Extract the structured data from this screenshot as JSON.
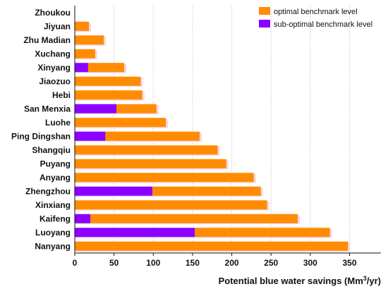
{
  "chart_data": {
    "type": "bar",
    "orientation": "horizontal",
    "stacked": true,
    "categories": [
      "Zhoukou",
      "Jiyuan",
      "Zhu Madian",
      "Xuchang",
      "Xinyang",
      "Jiaozuo",
      "Hebi",
      "San Menxia",
      "Luohe",
      "Ping Dingshan",
      "Shangqiu",
      "Puyang",
      "Anyang",
      "Zhengzhou",
      "Xinxiang",
      "Kaifeng",
      "Luoyang",
      "Nanyang"
    ],
    "series": [
      {
        "name": "sub-optimal benchmark level",
        "color": "#8b00ff",
        "values": [
          0,
          0,
          0,
          0,
          17,
          0,
          0,
          53,
          0,
          39,
          0,
          0,
          0,
          99,
          0,
          20,
          153,
          0
        ]
      },
      {
        "name": "optimal benchmark level",
        "color": "#ff8c00",
        "values": [
          0,
          18,
          37,
          26,
          46,
          84,
          86,
          51,
          116,
          120,
          182,
          193,
          228,
          138,
          245,
          264,
          172,
          348
        ]
      }
    ],
    "xlim": [
      0,
      390
    ],
    "xticks": [
      0,
      50,
      100,
      150,
      200,
      250,
      300,
      350
    ],
    "xlabel": "Potential blue water savings (Mm³/yr)",
    "xlabel_main": "Potential blue water savings (Mm",
    "xlabel_sup": "3",
    "xlabel_end": "/yr)",
    "grid": "vertical dotted",
    "legend_position": "top-right"
  }
}
